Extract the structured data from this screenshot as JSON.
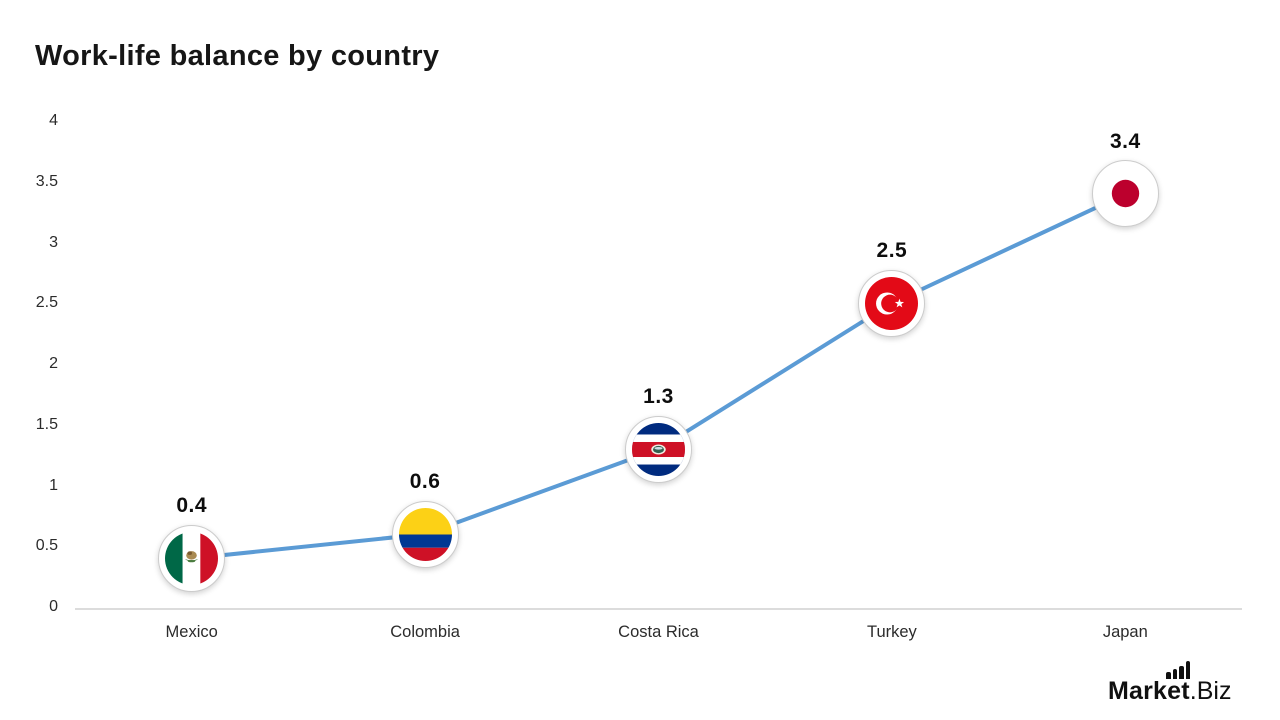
{
  "title": "Work-life balance by country",
  "watermark": {
    "bold": "Market",
    "light": ".Biz",
    "icon": "bar-chart-icon"
  },
  "chart_data": {
    "type": "line",
    "title": "Work-life balance by country",
    "categories": [
      "Mexico",
      "Colombia",
      "Costa Rica",
      "Turkey",
      "Japan"
    ],
    "values": [
      0.4,
      0.6,
      1.3,
      2.5,
      3.4
    ],
    "point_labels": [
      "0.4",
      "0.6",
      "1.3",
      "2.5",
      "3.4"
    ],
    "point_icons": [
      "flag-mexico-icon",
      "flag-colombia-icon",
      "flag-costa-rica-icon",
      "flag-turkey-icon",
      "flag-japan-icon"
    ],
    "xlabel": "",
    "ylabel": "",
    "ylim": [
      0,
      4
    ],
    "yticks": [
      0,
      0.5,
      1,
      1.5,
      2,
      2.5,
      3,
      3.5,
      4
    ],
    "grid": false,
    "legend": "none",
    "line_color": "#5B9BD5",
    "axis_line_color": "#dcdcdc",
    "tick_label_color": "#2b2b2b",
    "data_label_color": "#0d0d0d"
  },
  "flags": {
    "mexico": {
      "green": "#006847",
      "white": "#ffffff",
      "red": "#ce1126",
      "emblem": "#a98a52",
      "emblem_dark": "#7a5a30",
      "wreath": "#4a7c3f"
    },
    "colombia": {
      "yellow": "#FCD116",
      "blue": "#003893",
      "red": "#CE1126"
    },
    "costa_rica": {
      "blue": "#002B7F",
      "white": "#ffffff",
      "red": "#CE1126",
      "emblem_ring": "#f0ece2",
      "emblem_inner": "#33604f",
      "emblem_sky": "#cfdde8"
    },
    "turkey": {
      "red": "#E30A17",
      "white": "#ffffff"
    },
    "japan": {
      "white": "#ffffff",
      "red": "#BC002D"
    }
  }
}
